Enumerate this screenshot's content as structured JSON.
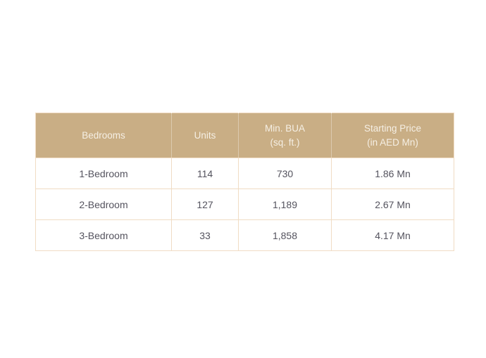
{
  "table": {
    "columns": [
      {
        "lines": [
          "Bedrooms"
        ]
      },
      {
        "lines": [
          "Units"
        ]
      },
      {
        "lines": [
          "Min. BUA",
          "(sq. ft.)"
        ]
      },
      {
        "lines": [
          "Starting Price",
          "(in AED Mn)"
        ]
      }
    ],
    "rows": [
      {
        "bedrooms": "1-Bedroom",
        "units": "114",
        "min_bua": "730",
        "starting_price": "1.86 Mn"
      },
      {
        "bedrooms": "2-Bedroom",
        "units": "127",
        "min_bua": "1,189",
        "starting_price": "2.67 Mn"
      },
      {
        "bedrooms": "3-Bedroom",
        "units": "33",
        "min_bua": "1,858",
        "starting_price": "4.17 Mn"
      }
    ],
    "colors": {
      "header_bg": "#C9AE85",
      "header_text": "#F5EFE4",
      "border": "#F0DCC4",
      "cell_text": "#54535E",
      "page_bg": "#FFFFFF"
    }
  }
}
